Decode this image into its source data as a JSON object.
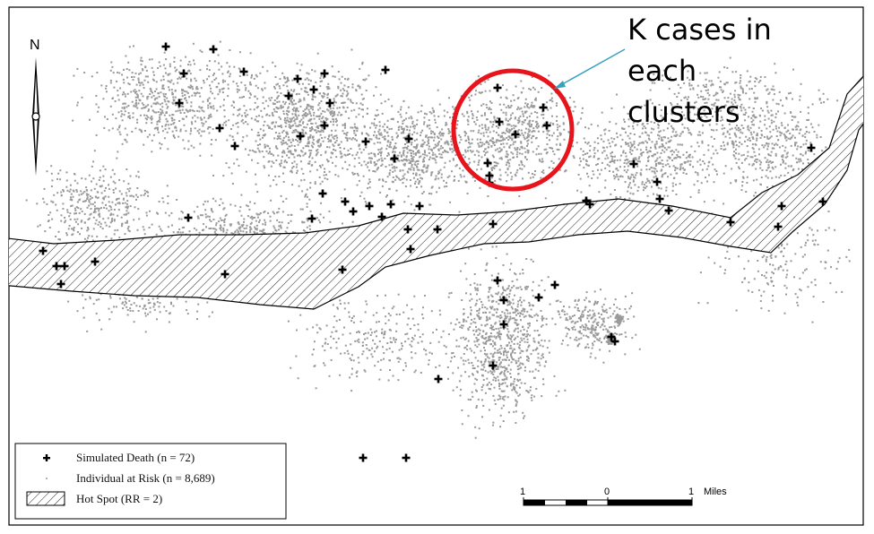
{
  "north_label": "N",
  "annotation": {
    "lines": [
      "K cases in",
      "each",
      "clusters"
    ],
    "color": "#e8141b",
    "arrow_color": "#3aa0c0"
  },
  "legend": {
    "death": "Simulated Death (n = 72)",
    "risk": "Individual at Risk (n = 8,689)",
    "hotspot": "Hot Spot (RR = 2)"
  },
  "scale": {
    "left": "1",
    "mid": "0",
    "right": "1",
    "unit": "Miles"
  },
  "colors": {
    "risk": "#9a9a9a",
    "death": "#000000",
    "frame": "#000000"
  }
}
